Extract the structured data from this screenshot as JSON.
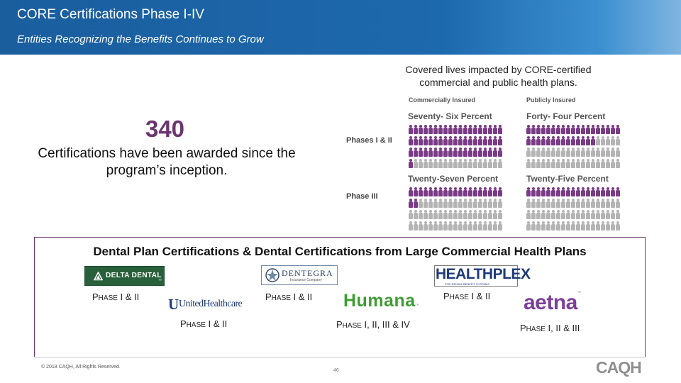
{
  "header": {
    "title": "CORE Certifications Phase I-IV",
    "subtitle": "Entities Recognizing the Benefits Continues to Grow"
  },
  "stat": {
    "number": "340",
    "caption": "Certifications have been awarded since the program’s inception."
  },
  "covered": {
    "caption": "Covered lives impacted by CORE-certified commercial and public health plans."
  },
  "infographic": {
    "columns": [
      "Commercially Insured",
      "Publicly Insured"
    ],
    "rows": [
      {
        "label": "Phases I & II",
        "commercial": {
          "text": "Seventy- Six Percent",
          "percent": 76
        },
        "public": {
          "text": "Forty- Four Percent",
          "percent": 44
        }
      },
      {
        "label": "Phase III",
        "commercial": {
          "text": "Twenty-Seven Percent",
          "percent": 27
        },
        "public": {
          "text": "Twenty-Five Percent",
          "percent": 25
        }
      }
    ],
    "highlight_color": "#7a3a86",
    "base_color": "#b4b4b4"
  },
  "dental": {
    "heading": "Dental Plan Certifications & Dental Certifications from Large Commercial Health Plans",
    "logos": {
      "delta": "DELTA DENTAL",
      "delta_tm": "™",
      "dentegra": "DENTEGRA",
      "dentegra_sub": "Insurance Company",
      "healthplex": "HEALTHPLEX",
      "healthplex_sub": "FOR DENTAL BENEFIT SYSTEMS",
      "uhc_mark": "U",
      "uhc": "UnitedHealthcare",
      "humana": "Humana",
      "humana_tm": "™",
      "aetna": "aetna",
      "aetna_tm": "™"
    },
    "phases": {
      "delta": {
        "cap": "P",
        "small": "HASE",
        "rest": " I & II"
      },
      "dentegra": {
        "cap": "P",
        "small": "HASE",
        "rest": " I & II"
      },
      "healthplex": {
        "cap": "P",
        "small": "HASE",
        "rest": " I & II"
      },
      "uhc": {
        "cap": "P",
        "small": "HASE",
        "rest": " I & II"
      },
      "humana": {
        "cap": "P",
        "small": "HASE",
        "rest": " I, II, III & IV"
      },
      "aetna": {
        "cap": "P",
        "small": "HASE",
        "rest": " I, II & III"
      }
    }
  },
  "footer": {
    "copyright": "© 2018 CAQH, All Rights Reserved.",
    "page_number": "46",
    "logo": "CAQH"
  }
}
